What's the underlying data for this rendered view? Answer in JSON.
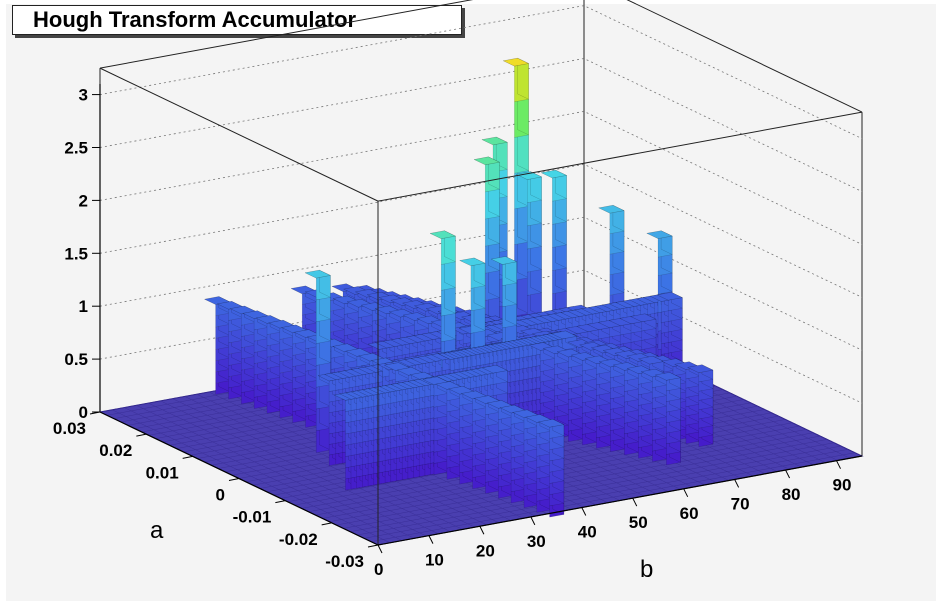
{
  "chart_data": {
    "type": "lego3d",
    "title": "Hough Transform Accumulator",
    "xlabel": "b",
    "ylabel": "a",
    "zlabel": "",
    "x_ticks": [
      "0",
      "10",
      "20",
      "30",
      "40",
      "50",
      "60",
      "70",
      "80",
      "90"
    ],
    "y_ticks": [
      "-0.03",
      "-0.02",
      "-0.01",
      "0",
      "0.01",
      "0.02",
      "0.03"
    ],
    "z_ticks": [
      "0",
      "0.5",
      "1",
      "1.5",
      "2",
      "2.5",
      "3"
    ],
    "xlim": [
      0,
      95
    ],
    "ylim": [
      -0.03,
      0.03
    ],
    "zlim": [
      0,
      3.3
    ],
    "grid": true,
    "colors": {
      "floor": "#4a3fb0",
      "low": "#3b2fd0",
      "mid": "#3fd9e6",
      "high": "#77ee33",
      "peak": "#ee2222"
    },
    "walls": [
      {
        "b": [
          13,
          42
        ],
        "a": [
          -0.009,
          -0.009
        ],
        "z": 0.85
      },
      {
        "b": [
          18,
          52
        ],
        "a": [
          0.0,
          0.0
        ],
        "z": 0.8
      },
      {
        "b": [
          40,
          62
        ],
        "a": [
          -0.002,
          -0.002
        ],
        "z": 0.85
      },
      {
        "b": [
          55,
          90
        ],
        "a": [
          0.006,
          0.006
        ],
        "z": 0.8
      },
      {
        "b": [
          28,
          83
        ],
        "a": [
          0.004,
          0.004
        ],
        "z": 0.7
      },
      {
        "b": [
          36,
          75
        ],
        "a": [
          0.009,
          0.009
        ],
        "z": 0.75
      },
      {
        "b": [
          23,
          34
        ],
        "a": [
          0.03,
          -0.03
        ],
        "z": 0.85
      },
      {
        "b": [
          40,
          66
        ],
        "a": [
          0.03,
          -0.02
        ],
        "z": 0.8
      },
      {
        "b": [
          48,
          70
        ],
        "a": [
          0.03,
          -0.012
        ],
        "z": 0.75
      },
      {
        "b": [
          52,
          76
        ],
        "a": [
          0.03,
          -0.016
        ],
        "z": 0.7
      }
    ],
    "peaks": [
      {
        "b": 20,
        "a": 0.005,
        "z": 1.65
      },
      {
        "b": 40,
        "a": 0.0,
        "z": 1.95
      },
      {
        "b": 44,
        "a": -0.002,
        "z": 1.7
      },
      {
        "b": 52,
        "a": 0.0,
        "z": 1.6
      },
      {
        "b": 65,
        "a": 0.018,
        "z": 2.05
      },
      {
        "b": 72,
        "a": 0.024,
        "z": 2.05
      },
      {
        "b": 78,
        "a": 0.026,
        "z": 2.7
      },
      {
        "b": 76,
        "a": 0.021,
        "z": 1.75
      },
      {
        "b": 80,
        "a": 0.02,
        "z": 1.75
      },
      {
        "b": 84,
        "a": 0.012,
        "z": 1.55
      },
      {
        "b": 88,
        "a": 0.006,
        "z": 1.4
      }
    ]
  }
}
